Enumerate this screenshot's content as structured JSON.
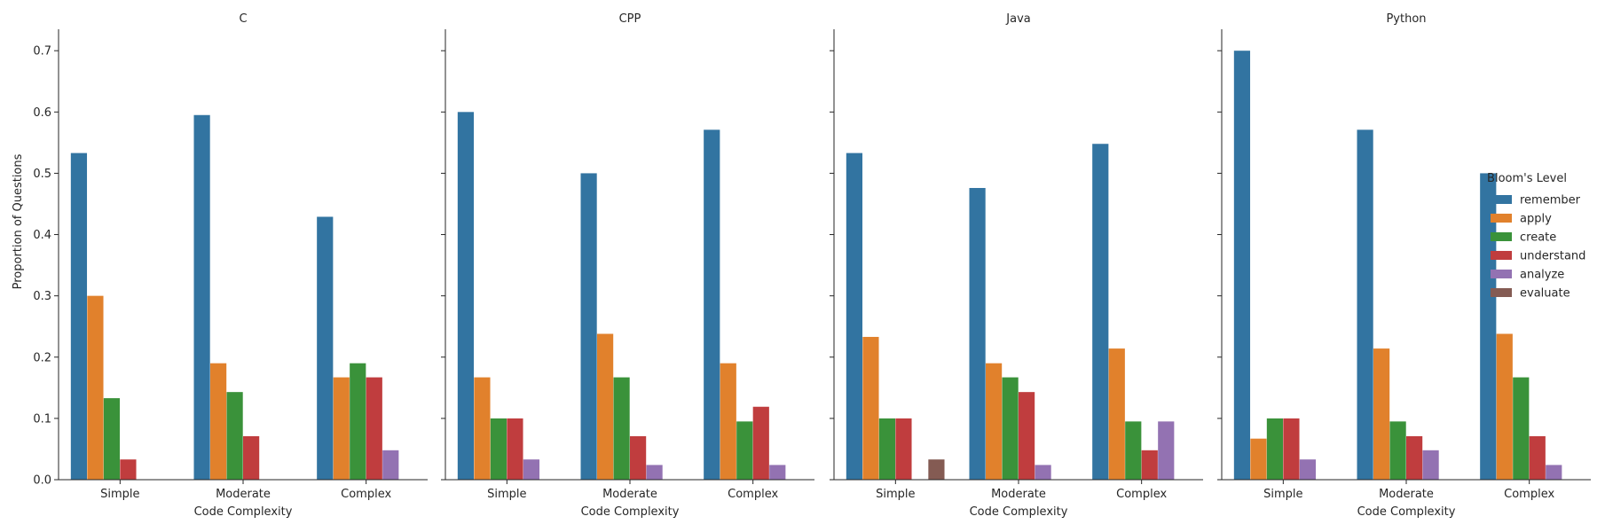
{
  "chart_data": {
    "type": "bar",
    "ylabel": "Proportion of Questions",
    "xlabel": "Code Complexity",
    "ylim": [
      0,
      0.735
    ],
    "yticks": [
      0.0,
      0.1,
      0.2,
      0.3,
      0.4,
      0.5,
      0.6,
      0.7
    ],
    "ytick_labels": [
      "0.0",
      "0.1",
      "0.2",
      "0.3",
      "0.4",
      "0.5",
      "0.6",
      "0.7"
    ],
    "categories": [
      "Simple",
      "Moderate",
      "Complex"
    ],
    "legend": {
      "title": "Bloom's Level",
      "placement": "right",
      "entries": [
        "remember",
        "apply",
        "create",
        "understand",
        "analyze",
        "evaluate"
      ]
    },
    "colors": {
      "remember": "#3274a1",
      "apply": "#e1812c",
      "create": "#3a923a",
      "understand": "#c03d3e",
      "analyze": "#9372b2",
      "evaluate": "#845b53"
    },
    "grid": false,
    "panels": [
      {
        "title": "C",
        "series": [
          {
            "name": "remember",
            "values": [
              0.533,
              0.595,
              0.429
            ]
          },
          {
            "name": "apply",
            "values": [
              0.3,
              0.19,
              0.167
            ]
          },
          {
            "name": "create",
            "values": [
              0.133,
              0.143,
              0.19
            ]
          },
          {
            "name": "understand",
            "values": [
              0.033,
              0.071,
              0.167
            ]
          },
          {
            "name": "analyze",
            "values": [
              0,
              0,
              0.048
            ]
          },
          {
            "name": "evaluate",
            "values": [
              0,
              0,
              0
            ]
          }
        ]
      },
      {
        "title": "CPP",
        "series": [
          {
            "name": "remember",
            "values": [
              0.6,
              0.5,
              0.571
            ]
          },
          {
            "name": "apply",
            "values": [
              0.167,
              0.238,
              0.19
            ]
          },
          {
            "name": "create",
            "values": [
              0.1,
              0.167,
              0.095
            ]
          },
          {
            "name": "understand",
            "values": [
              0.1,
              0.071,
              0.119
            ]
          },
          {
            "name": "analyze",
            "values": [
              0.033,
              0.024,
              0.024
            ]
          },
          {
            "name": "evaluate",
            "values": [
              0,
              0,
              0
            ]
          }
        ]
      },
      {
        "title": "Java",
        "series": [
          {
            "name": "remember",
            "values": [
              0.533,
              0.476,
              0.548
            ]
          },
          {
            "name": "apply",
            "values": [
              0.233,
              0.19,
              0.214
            ]
          },
          {
            "name": "create",
            "values": [
              0.1,
              0.167,
              0.095
            ]
          },
          {
            "name": "understand",
            "values": [
              0.1,
              0.143,
              0.048
            ]
          },
          {
            "name": "analyze",
            "values": [
              0,
              0.024,
              0.095
            ]
          },
          {
            "name": "evaluate",
            "values": [
              0.033,
              0,
              0
            ]
          }
        ]
      },
      {
        "title": "Python",
        "series": [
          {
            "name": "remember",
            "values": [
              0.7,
              0.571,
              0.5
            ]
          },
          {
            "name": "apply",
            "values": [
              0.067,
              0.214,
              0.238
            ]
          },
          {
            "name": "create",
            "values": [
              0.1,
              0.095,
              0.167
            ]
          },
          {
            "name": "understand",
            "values": [
              0.1,
              0.071,
              0.071
            ]
          },
          {
            "name": "analyze",
            "values": [
              0.033,
              0.048,
              0.024
            ]
          },
          {
            "name": "evaluate",
            "values": [
              0,
              0,
              0
            ]
          }
        ]
      }
    ]
  }
}
